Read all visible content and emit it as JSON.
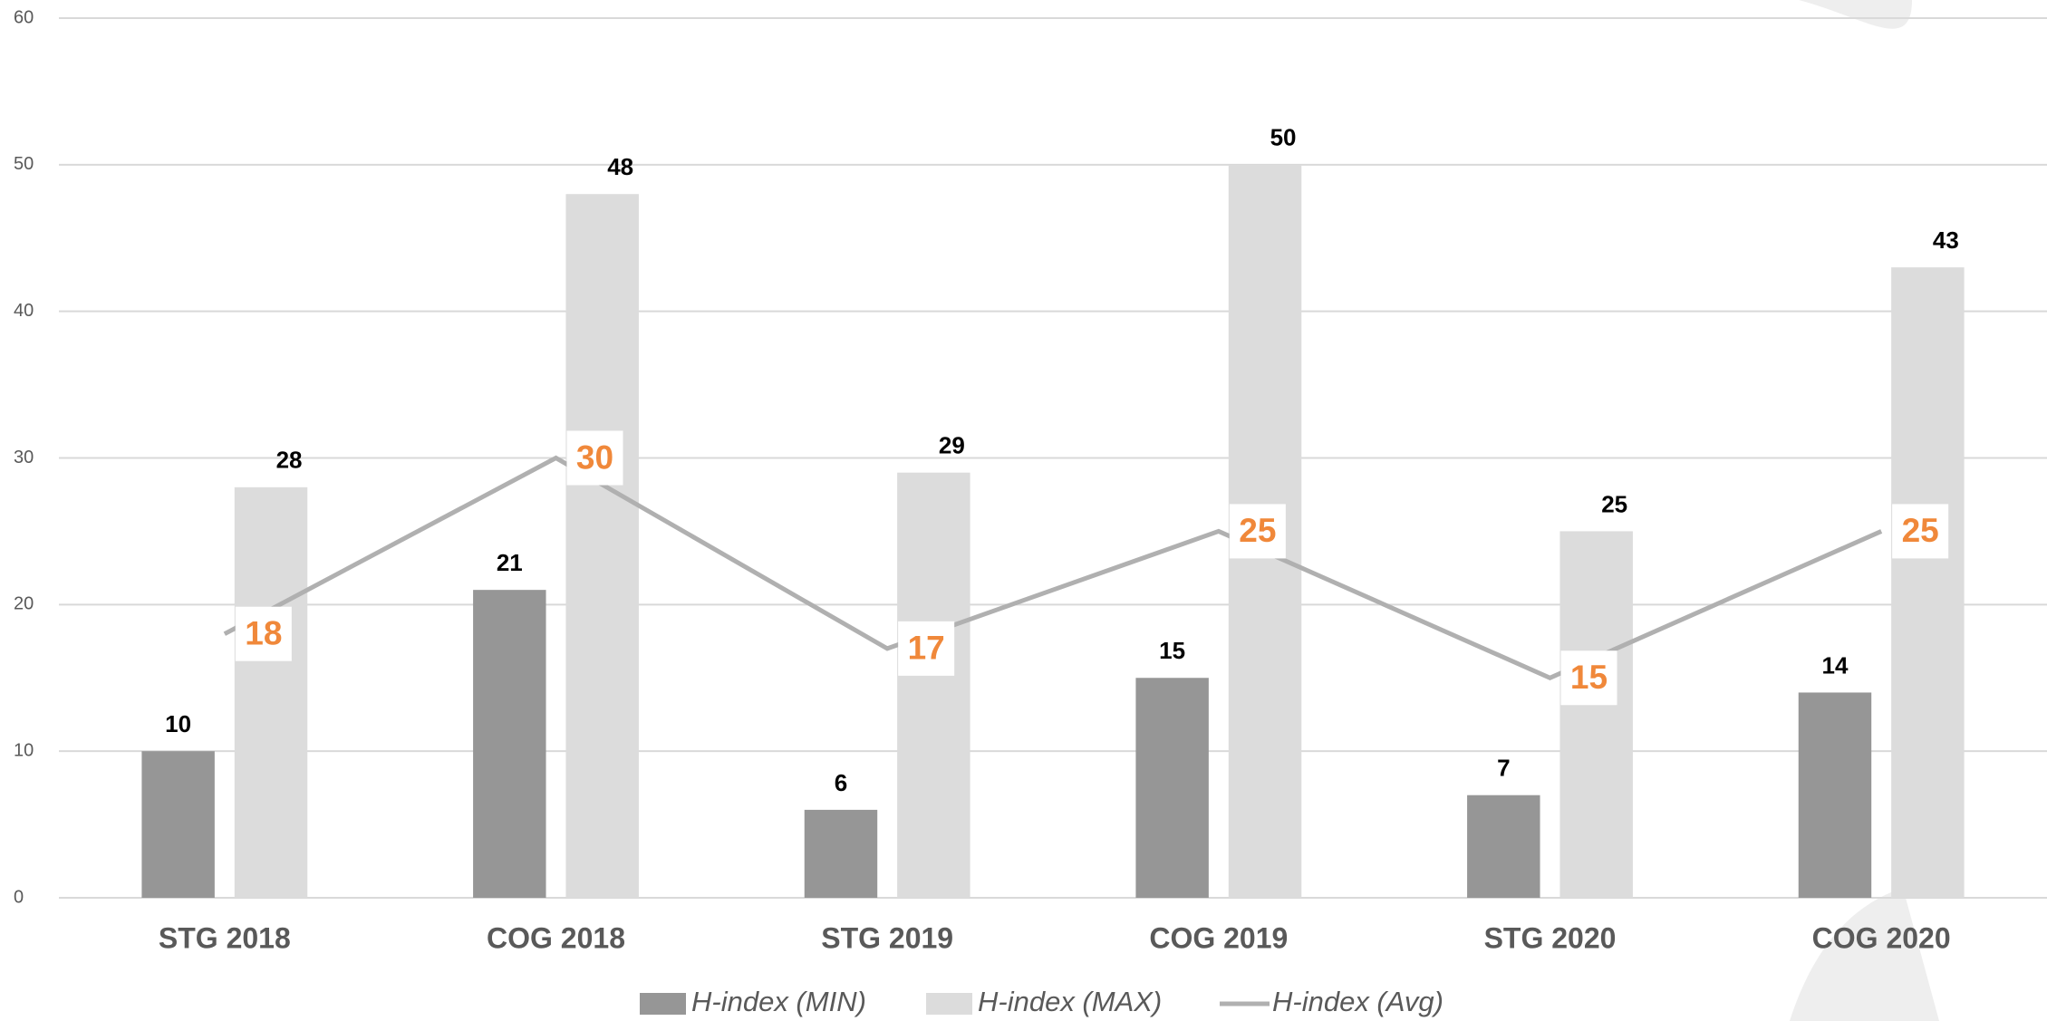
{
  "chart_data": {
    "type": "bar",
    "categories": [
      "STG 2018",
      "COG 2018",
      "STG 2019",
      "COG 2019",
      "STG 2020",
      "COG 2020"
    ],
    "series": [
      {
        "name": "H-index (MIN)",
        "color": "#969696",
        "values": [
          10,
          21,
          6,
          15,
          7,
          14
        ]
      },
      {
        "name": "H-index (MAX)",
        "color": "#dcdcdc",
        "values": [
          28,
          48,
          29,
          50,
          25,
          43
        ]
      },
      {
        "name": "H-index (Avg)",
        "color": "#b0b0b0",
        "type": "line",
        "label_color": "#f0883a",
        "values": [
          18,
          30,
          17,
          25,
          15,
          25
        ]
      }
    ],
    "ylim": [
      0,
      60
    ],
    "yticks": [
      0,
      10,
      20,
      30,
      40,
      50,
      60
    ],
    "grid": true,
    "legend": "bottom"
  }
}
